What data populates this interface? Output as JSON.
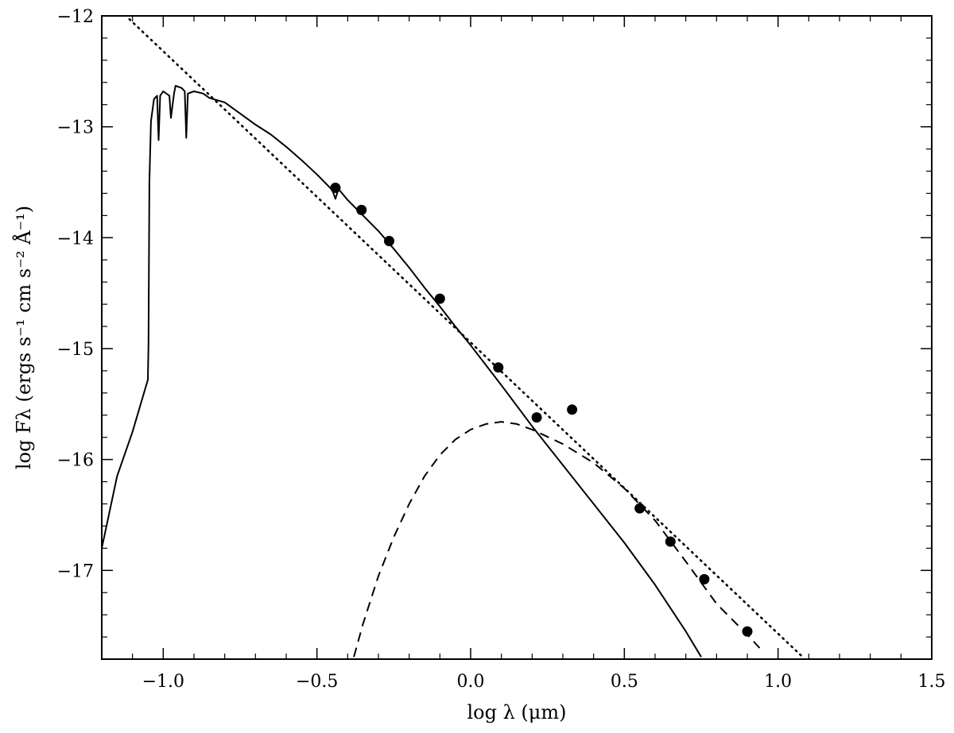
{
  "chart_data": {
    "type": "line",
    "xlabel": "log λ (μm)",
    "ylabel": "log Fλ (ergs s⁻¹ cm s⁻² Å⁻¹)",
    "xlim": [
      -1.2,
      1.5
    ],
    "ylim": [
      -17.8,
      -12.0
    ],
    "grid": false,
    "xticks": [
      -1.0,
      -0.5,
      0.0,
      0.5,
      1.0,
      1.5
    ],
    "xtick_labels": [
      "−1.0",
      "−0.5",
      "0.0",
      "0.5",
      "1.0",
      "1.5"
    ],
    "yticks": [
      -12,
      -13,
      -14,
      -15,
      -16,
      -17
    ],
    "ytick_labels": [
      "−12",
      "−13",
      "−14",
      "−15",
      "−16",
      "−17"
    ],
    "series": [
      {
        "style": "solid",
        "points": [
          [
            -1.2,
            -16.8
          ],
          [
            -1.15,
            -16.15
          ],
          [
            -1.1,
            -15.75
          ],
          [
            -1.05,
            -15.28
          ],
          [
            -1.048,
            -14.95
          ],
          [
            -1.045,
            -13.5
          ],
          [
            -1.04,
            -12.95
          ],
          [
            -1.03,
            -12.75
          ],
          [
            -1.02,
            -12.72
          ],
          [
            -1.015,
            -13.12
          ],
          [
            -1.01,
            -12.72
          ],
          [
            -1.0,
            -12.68
          ],
          [
            -0.98,
            -12.72
          ],
          [
            -0.975,
            -12.92
          ],
          [
            -0.965,
            -12.7
          ],
          [
            -0.96,
            -12.63
          ],
          [
            -0.94,
            -12.65
          ],
          [
            -0.93,
            -12.68
          ],
          [
            -0.925,
            -13.1
          ],
          [
            -0.92,
            -12.7
          ],
          [
            -0.9,
            -12.68
          ],
          [
            -0.87,
            -12.7
          ],
          [
            -0.85,
            -12.74
          ],
          [
            -0.8,
            -12.78
          ],
          [
            -0.75,
            -12.88
          ],
          [
            -0.7,
            -12.98
          ],
          [
            -0.65,
            -13.07
          ],
          [
            -0.6,
            -13.18
          ],
          [
            -0.55,
            -13.3
          ],
          [
            -0.5,
            -13.43
          ],
          [
            -0.45,
            -13.57
          ],
          [
            -0.44,
            -13.65
          ],
          [
            -0.43,
            -13.56
          ],
          [
            -0.4,
            -13.66
          ],
          [
            -0.35,
            -13.8
          ],
          [
            -0.3,
            -13.94
          ],
          [
            -0.25,
            -14.1
          ],
          [
            -0.2,
            -14.27
          ],
          [
            -0.15,
            -14.45
          ],
          [
            -0.1,
            -14.62
          ],
          [
            -0.05,
            -14.8
          ],
          [
            0.0,
            -14.97
          ],
          [
            0.05,
            -15.15
          ],
          [
            0.1,
            -15.33
          ],
          [
            0.2,
            -15.7
          ],
          [
            0.3,
            -16.05
          ],
          [
            0.4,
            -16.4
          ],
          [
            0.5,
            -16.75
          ],
          [
            0.6,
            -17.13
          ],
          [
            0.7,
            -17.55
          ],
          [
            0.75,
            -17.78
          ]
        ]
      },
      {
        "style": "dashed",
        "points": [
          [
            -0.38,
            -17.78
          ],
          [
            -0.35,
            -17.48
          ],
          [
            -0.3,
            -17.05
          ],
          [
            -0.25,
            -16.7
          ],
          [
            -0.2,
            -16.4
          ],
          [
            -0.15,
            -16.15
          ],
          [
            -0.1,
            -15.96
          ],
          [
            -0.05,
            -15.82
          ],
          [
            0.0,
            -15.73
          ],
          [
            0.05,
            -15.68
          ],
          [
            0.1,
            -15.66
          ],
          [
            0.15,
            -15.68
          ],
          [
            0.2,
            -15.73
          ],
          [
            0.3,
            -15.86
          ],
          [
            0.4,
            -16.03
          ],
          [
            0.5,
            -16.26
          ],
          [
            0.6,
            -16.55
          ],
          [
            0.7,
            -16.92
          ],
          [
            0.8,
            -17.3
          ],
          [
            0.9,
            -17.58
          ],
          [
            0.94,
            -17.7
          ]
        ]
      },
      {
        "style": "dotted",
        "points": [
          [
            -1.11,
            -12.03
          ],
          [
            1.08,
            -17.78
          ]
        ]
      },
      {
        "style": "markers",
        "points": [
          [
            -0.44,
            -13.55
          ],
          [
            -0.355,
            -13.75
          ],
          [
            -0.265,
            -14.03
          ],
          [
            -0.1,
            -14.55
          ],
          [
            0.09,
            -15.17
          ],
          [
            0.215,
            -15.62
          ],
          [
            0.33,
            -15.55
          ],
          [
            0.55,
            -16.44
          ],
          [
            0.65,
            -16.74
          ],
          [
            0.76,
            -17.08
          ],
          [
            0.9,
            -17.55
          ]
        ]
      }
    ]
  }
}
